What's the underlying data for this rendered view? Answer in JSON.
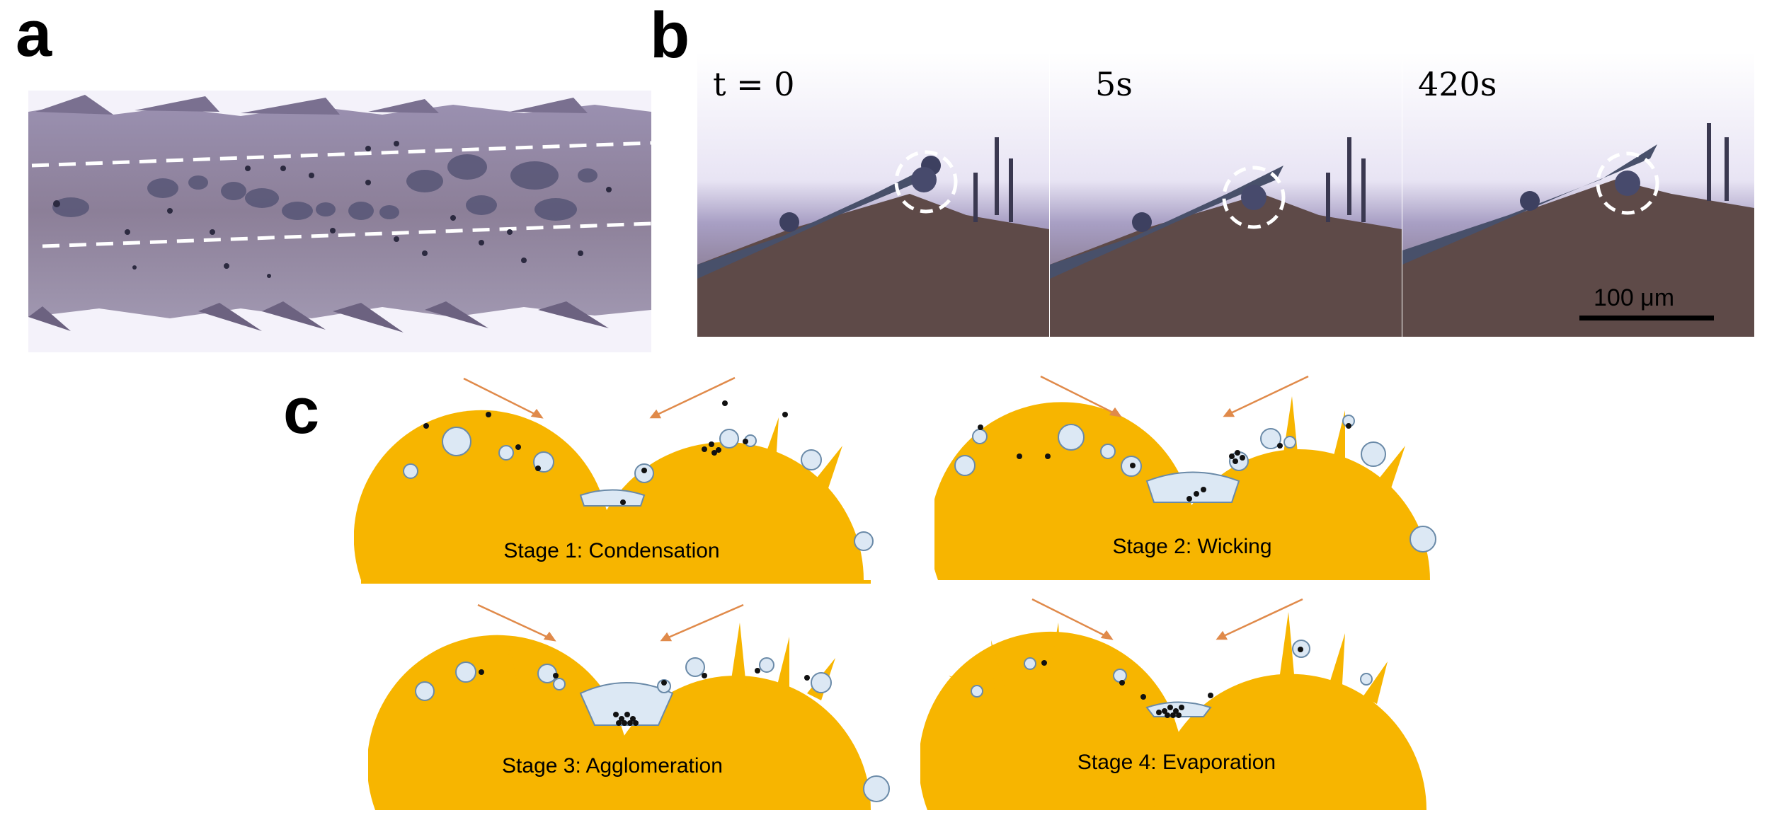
{
  "panels": {
    "a": "a",
    "b": "b",
    "c": "c"
  },
  "panel_b": {
    "frames": [
      {
        "label": "t = 0"
      },
      {
        "label": "5s"
      },
      {
        "label": "420s"
      }
    ],
    "scale_bar": "100 μm"
  },
  "panel_c": {
    "stages": [
      {
        "label": "Stage 1: Condensation"
      },
      {
        "label": "Stage 2: Wicking"
      },
      {
        "label": "Stage 3: Agglomeration"
      },
      {
        "label": "Stage 4: Evaporation"
      }
    ]
  },
  "colors": {
    "substrate": "#f7b500",
    "droplet_fill": "#dce8f4",
    "droplet_stroke": "#6a8aa8",
    "arrow": "#e08a4a",
    "particle": "#111111",
    "dashed_line": "#ffffff"
  }
}
